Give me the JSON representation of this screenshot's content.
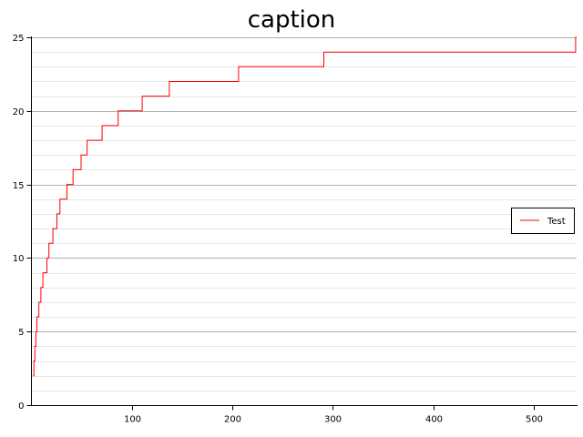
{
  "chart_data": {
    "type": "line",
    "title": "caption",
    "xlabel": "",
    "ylabel": "",
    "xlim": [
      0,
      543
    ],
    "ylim": [
      0,
      25
    ],
    "x_ticks": [
      100,
      200,
      300,
      400,
      500
    ],
    "y_ticks": [
      0,
      5,
      10,
      15,
      20,
      25
    ],
    "y_minor_step": 1,
    "grid": true,
    "legend_position": "right",
    "series": [
      {
        "name": "Test",
        "color": "#ff0000",
        "step": true,
        "points": [
          [
            1,
            2
          ],
          [
            2,
            3
          ],
          [
            3,
            4
          ],
          [
            4,
            5
          ],
          [
            5,
            6
          ],
          [
            7,
            7
          ],
          [
            9,
            8
          ],
          [
            11,
            9
          ],
          [
            15,
            10
          ],
          [
            17,
            11
          ],
          [
            21,
            12
          ],
          [
            25,
            13
          ],
          [
            28,
            14
          ],
          [
            35,
            15
          ],
          [
            41,
            16
          ],
          [
            49,
            17
          ],
          [
            55,
            18
          ],
          [
            70,
            19
          ],
          [
            86,
            20
          ],
          [
            110,
            21
          ],
          [
            137,
            22
          ],
          [
            206,
            23
          ],
          [
            291,
            24
          ],
          [
            542,
            25
          ],
          [
            543,
            25
          ]
        ]
      }
    ]
  }
}
